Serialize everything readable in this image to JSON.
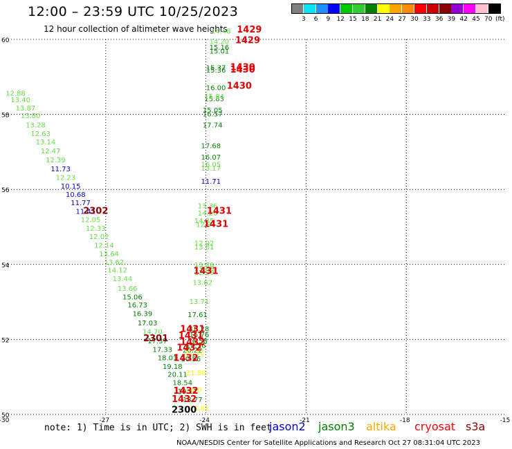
{
  "header": {
    "title": "12:00 – 23:59 UTC 10/25/2023",
    "subtitle": "12 hour collection of altimeter wave heights"
  },
  "colorbar": {
    "colors": [
      "#808080",
      "#00e5ee",
      "#1e90ff",
      "#0000ff",
      "#00c800",
      "#32cd32",
      "#008000",
      "#ffff00",
      "#ffa500",
      "#ff8c00",
      "#ff0000",
      "#cd0000",
      "#8b0000",
      "#9400d3",
      "#ff00ff",
      "#ffc0cb",
      "#000000"
    ],
    "labels": [
      "3",
      "6",
      "9",
      "12",
      "15",
      "18",
      "21",
      "24",
      "27",
      "30",
      "33",
      "36",
      "39",
      "42",
      "45",
      "70"
    ],
    "unit": "(ft)"
  },
  "footer": {
    "note": "note: 1) Time is in UTC; 2) SWH is in feet",
    "credit": "NOAA/NESDIS Center for Satellite Applications and Research   Oct 27 08:31:04 UTC 2023"
  },
  "legend": [
    {
      "name": "jason2",
      "color": "#0000cd"
    },
    {
      "name": "jason3",
      "color": "#008000"
    },
    {
      "name": "altika",
      "color": "#ffa500"
    },
    {
      "name": "cryosat",
      "color": "#ff0000"
    },
    {
      "name": "s3a",
      "color": "#8b0000"
    }
  ],
  "chart_data": {
    "type": "scatter",
    "xlim": [
      -30,
      -15
    ],
    "ylim": [
      50,
      60
    ],
    "xticks": [
      "-30",
      "-27",
      "-24",
      "-21",
      "-18",
      "-15"
    ],
    "yticks": [
      "50",
      "52",
      "54",
      "56",
      "58",
      "60"
    ],
    "grid": true,
    "points": [
      {
        "lon": -29.7,
        "lat": 58.5,
        "text": "12.88",
        "color": "#66dd44"
      },
      {
        "lon": -29.55,
        "lat": 58.32,
        "text": "13.40",
        "color": "#66dd44"
      },
      {
        "lon": -29.4,
        "lat": 58.1,
        "text": "13.87",
        "color": "#66dd44"
      },
      {
        "lon": -29.25,
        "lat": 57.9,
        "text": "13.80",
        "color": "#66dd44"
      },
      {
        "lon": -29.1,
        "lat": 57.65,
        "text": "13.28",
        "color": "#66dd44"
      },
      {
        "lon": -28.95,
        "lat": 57.42,
        "text": "12.63",
        "color": "#66dd44"
      },
      {
        "lon": -28.8,
        "lat": 57.2,
        "text": "13.14",
        "color": "#66dd44"
      },
      {
        "lon": -28.65,
        "lat": 56.96,
        "text": "12.47",
        "color": "#66dd44"
      },
      {
        "lon": -28.5,
        "lat": 56.72,
        "text": "12.39",
        "color": "#66dd44"
      },
      {
        "lon": -28.35,
        "lat": 56.48,
        "text": "11.73",
        "color": "#0000cd"
      },
      {
        "lon": -28.2,
        "lat": 56.25,
        "text": "12.23",
        "color": "#66dd44"
      },
      {
        "lon": -28.05,
        "lat": 56.02,
        "text": "10.15",
        "color": "#0000cd"
      },
      {
        "lon": -27.9,
        "lat": 55.8,
        "text": "10.68",
        "color": "#0000cd"
      },
      {
        "lon": -27.75,
        "lat": 55.58,
        "text": "11.77",
        "color": "#0000cd"
      },
      {
        "lon": -27.6,
        "lat": 55.35,
        "text": "11.41",
        "color": "#0000cd"
      },
      {
        "lon": -27.45,
        "lat": 55.13,
        "text": "12.05",
        "color": "#66dd44"
      },
      {
        "lon": -27.3,
        "lat": 54.9,
        "text": "12.33",
        "color": "#66dd44"
      },
      {
        "lon": -27.2,
        "lat": 54.68,
        "text": "12.02",
        "color": "#66dd44"
      },
      {
        "lon": -27.05,
        "lat": 54.45,
        "text": "12.14",
        "color": "#66dd44"
      },
      {
        "lon": -26.9,
        "lat": 54.22,
        "text": "13.64",
        "color": "#66dd44"
      },
      {
        "lon": -26.75,
        "lat": 54.0,
        "text": "13.62",
        "color": "#66dd44"
      },
      {
        "lon": -26.65,
        "lat": 53.78,
        "text": "14.12",
        "color": "#66dd44"
      },
      {
        "lon": -26.5,
        "lat": 53.55,
        "text": "13.44",
        "color": "#66dd44"
      },
      {
        "lon": -26.35,
        "lat": 53.3,
        "text": "13.66",
        "color": "#66dd44"
      },
      {
        "lon": -26.2,
        "lat": 53.07,
        "text": "15.06",
        "color": "#008000"
      },
      {
        "lon": -26.05,
        "lat": 52.85,
        "text": "16.73",
        "color": "#008000"
      },
      {
        "lon": -25.9,
        "lat": 52.62,
        "text": "16.39",
        "color": "#008000"
      },
      {
        "lon": -25.75,
        "lat": 52.38,
        "text": "17.03",
        "color": "#008000"
      },
      {
        "lon": -25.6,
        "lat": 52.15,
        "text": "14.70",
        "color": "#66dd44"
      },
      {
        "lon": -25.45,
        "lat": 51.9,
        "text": "17.37",
        "color": "#008000"
      },
      {
        "lon": -25.3,
        "lat": 51.67,
        "text": "17.33",
        "color": "#008000"
      },
      {
        "lon": -25.15,
        "lat": 51.45,
        "text": "18.01",
        "color": "#008000"
      },
      {
        "lon": -25.0,
        "lat": 51.22,
        "text": "19.18",
        "color": "#008000"
      },
      {
        "lon": -24.85,
        "lat": 51.0,
        "text": "20.11",
        "color": "#008000"
      },
      {
        "lon": -24.7,
        "lat": 50.78,
        "text": "18.54",
        "color": "#008000"
      },
      {
        "lon": -24.55,
        "lat": 50.55,
        "text": "19.11",
        "color": "#008000"
      },
      {
        "lon": -24.4,
        "lat": 50.33,
        "text": "18.77",
        "color": "#008000"
      },
      {
        "lon": -24.2,
        "lat": 50.1,
        "text": "18.81",
        "color": "#ffff00"
      },
      {
        "lon": -24.4,
        "lat": 51.65,
        "text": "20.22",
        "color": "#008000"
      },
      {
        "lon": -24.45,
        "lat": 51.42,
        "text": "20.56",
        "color": "#008000"
      },
      {
        "lon": -24.3,
        "lat": 51.05,
        "text": "21.86",
        "color": "#ffff00"
      },
      {
        "lon": -24.35,
        "lat": 50.6,
        "text": "21.0",
        "color": "#ffff00"
      },
      {
        "lon": -24.2,
        "lat": 52.22,
        "text": "18.28",
        "color": "#008000"
      },
      {
        "lon": -24.2,
        "lat": 52.06,
        "text": "15.76",
        "color": "#008000"
      },
      {
        "lon": -24.25,
        "lat": 51.9,
        "text": "16.58",
        "color": "#008000"
      },
      {
        "lon": -24.3,
        "lat": 51.78,
        "text": "19.16",
        "color": "#008000"
      },
      {
        "lon": -24.35,
        "lat": 51.58,
        "text": "21.22",
        "color": "#ffff00"
      },
      {
        "lon": -24.25,
        "lat": 52.6,
        "text": "17.61",
        "color": "#008000"
      },
      {
        "lon": -24.2,
        "lat": 52.95,
        "text": "13.71",
        "color": "#66dd44"
      },
      {
        "lon": -24.1,
        "lat": 53.45,
        "text": "13.62",
        "color": "#66dd44"
      },
      {
        "lon": -24.05,
        "lat": 53.72,
        "text": "12.99",
        "color": "#66dd44"
      },
      {
        "lon": -24.05,
        "lat": 53.82,
        "text": "13.06",
        "color": "#66dd44"
      },
      {
        "lon": -24.05,
        "lat": 53.92,
        "text": "13.88",
        "color": "#66dd44"
      },
      {
        "lon": -24.05,
        "lat": 54.4,
        "text": "13.81",
        "color": "#66dd44"
      },
      {
        "lon": -24.05,
        "lat": 54.5,
        "text": "12.92",
        "color": "#66dd44"
      },
      {
        "lon": -24.0,
        "lat": 55.0,
        "text": "12.94",
        "color": "#66dd44"
      },
      {
        "lon": -24.05,
        "lat": 55.1,
        "text": "14.35",
        "color": "#66dd44"
      },
      {
        "lon": -23.95,
        "lat": 55.3,
        "text": "14.26",
        "color": "#66dd44"
      },
      {
        "lon": -23.95,
        "lat": 55.5,
        "text": "13.36",
        "color": "#66dd44"
      },
      {
        "lon": -23.85,
        "lat": 56.15,
        "text": "11.71",
        "color": "#0000cd"
      },
      {
        "lon": -23.85,
        "lat": 56.5,
        "text": "13.17",
        "color": "#66dd44"
      },
      {
        "lon": -23.85,
        "lat": 56.6,
        "text": "16.05",
        "color": "#66dd44"
      },
      {
        "lon": -23.85,
        "lat": 56.8,
        "text": "16.07",
        "color": "#008000"
      },
      {
        "lon": -23.85,
        "lat": 57.1,
        "text": "17.68",
        "color": "#008000"
      },
      {
        "lon": -23.8,
        "lat": 57.65,
        "text": "17.74",
        "color": "#008000"
      },
      {
        "lon": -23.8,
        "lat": 57.95,
        "text": "16.57",
        "color": "#008000"
      },
      {
        "lon": -23.8,
        "lat": 58.05,
        "text": "15.05",
        "color": "#008000"
      },
      {
        "lon": -23.75,
        "lat": 58.35,
        "text": "15.83",
        "color": "#008000"
      },
      {
        "lon": -23.75,
        "lat": 58.42,
        "text": "15.84",
        "color": "#66dd44"
      },
      {
        "lon": -23.7,
        "lat": 58.65,
        "text": "16.00",
        "color": "#008000"
      },
      {
        "lon": -23.7,
        "lat": 59.12,
        "text": "15.36",
        "color": "#008000"
      },
      {
        "lon": -23.7,
        "lat": 59.18,
        "text": "15.37",
        "color": "#008000"
      },
      {
        "lon": -23.6,
        "lat": 59.62,
        "text": "15.01",
        "color": "#008000"
      },
      {
        "lon": -23.6,
        "lat": 59.72,
        "text": "15.16",
        "color": "#008000"
      },
      {
        "lon": -23.6,
        "lat": 59.88,
        "text": "14.20",
        "color": "#66dd44"
      },
      {
        "lon": -23.55,
        "lat": 60.16,
        "text": "14.48",
        "color": "#66dd44"
      }
    ],
    "labels": [
      {
        "lon": -22.7,
        "lat": 60.18,
        "text": "1429",
        "color": "#e00000"
      },
      {
        "lon": -22.75,
        "lat": 59.9,
        "text": "1429",
        "color": "#e00000"
      },
      {
        "lon": -22.9,
        "lat": 59.18,
        "text": "1430",
        "color": "#e00000"
      },
      {
        "lon": -22.9,
        "lat": 59.12,
        "text": "1430",
        "color": "#e00000"
      },
      {
        "lon": -23.0,
        "lat": 58.68,
        "text": "1430",
        "color": "#e00000"
      },
      {
        "lon": -27.3,
        "lat": 55.35,
        "text": "2302",
        "color": "#8b0000"
      },
      {
        "lon": -23.6,
        "lat": 55.35,
        "text": "1431",
        "color": "#e00000"
      },
      {
        "lon": -23.7,
        "lat": 55.0,
        "text": "1431",
        "color": "#e00000"
      },
      {
        "lon": -24.0,
        "lat": 53.75,
        "text": "1431",
        "color": "#e00000"
      },
      {
        "lon": -24.4,
        "lat": 52.2,
        "text": "1431",
        "color": "#e00000"
      },
      {
        "lon": -24.45,
        "lat": 52.03,
        "text": "1431",
        "color": "#e00000"
      },
      {
        "lon": -24.4,
        "lat": 51.85,
        "text": "1432",
        "color": "#e00000"
      },
      {
        "lon": -24.5,
        "lat": 51.7,
        "text": "1432",
        "color": "#e00000"
      },
      {
        "lon": -24.6,
        "lat": 51.43,
        "text": "1432",
        "color": "#e00000"
      },
      {
        "lon": -25.5,
        "lat": 51.95,
        "text": "2301",
        "color": "#8b0000"
      },
      {
        "lon": -24.6,
        "lat": 50.55,
        "text": "1432",
        "color": "#e00000"
      },
      {
        "lon": -24.65,
        "lat": 50.33,
        "text": "1432",
        "color": "#e00000"
      },
      {
        "lon": -24.65,
        "lat": 50.05,
        "text": "2300",
        "color": "#000000"
      }
    ]
  }
}
